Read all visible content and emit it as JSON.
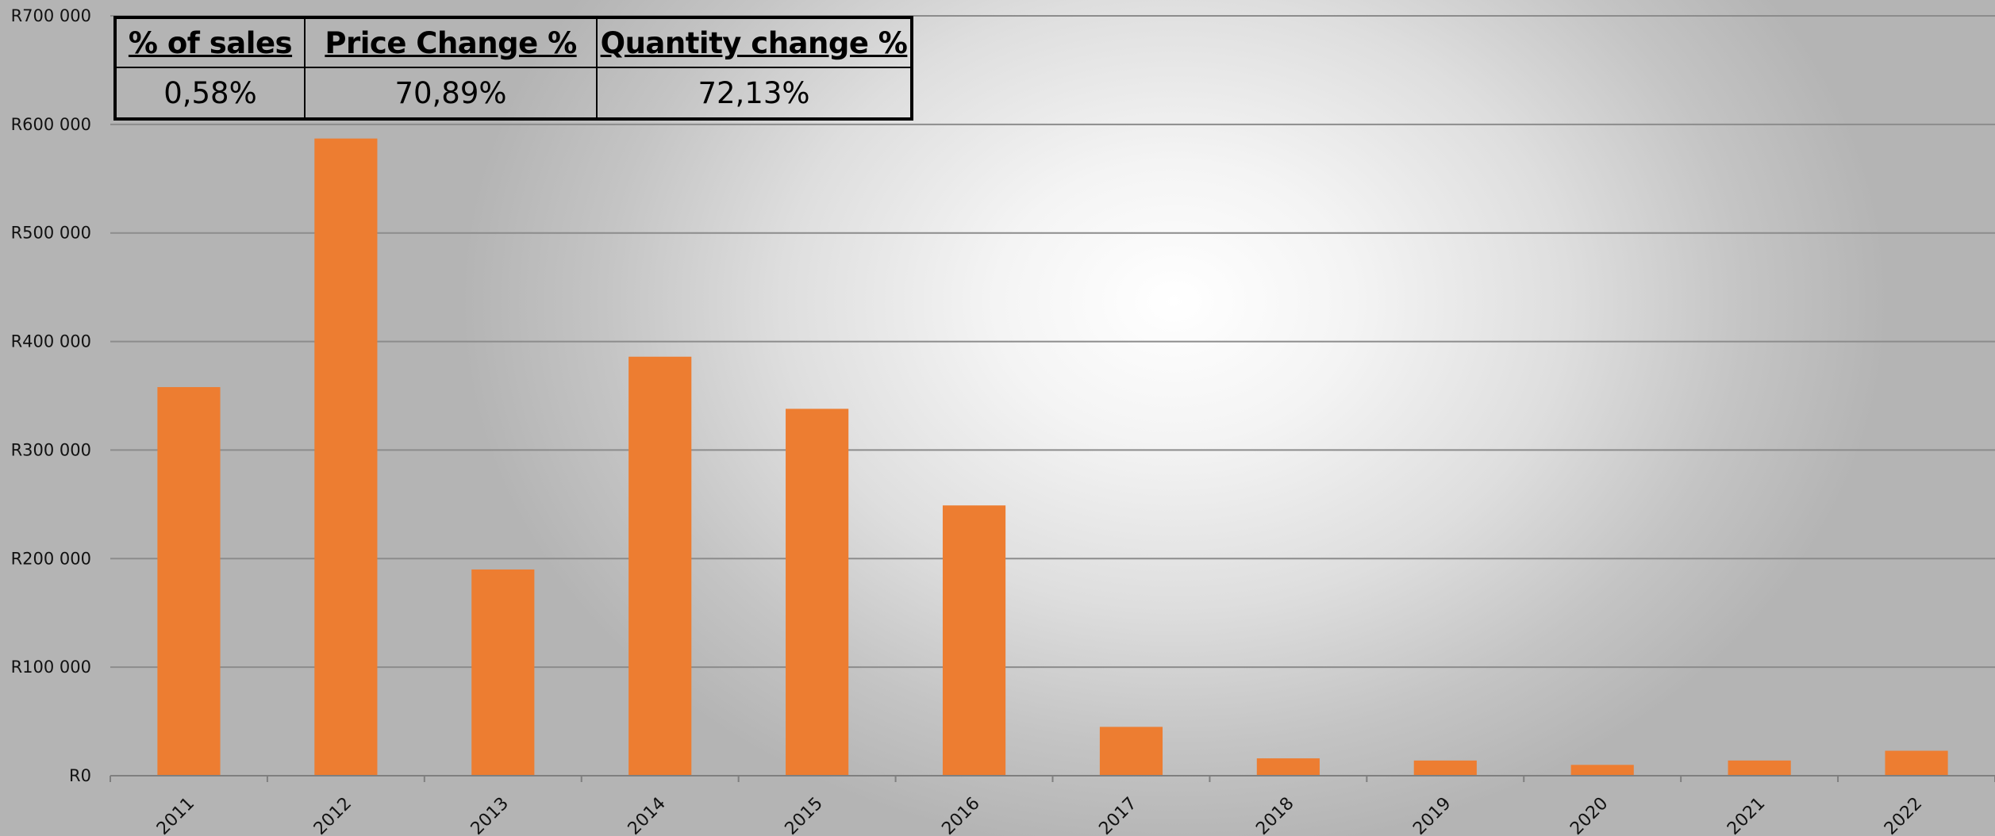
{
  "summary_table": {
    "headers": [
      "% of sales",
      "Price Change %",
      "Quantity change %"
    ],
    "values": [
      "0,58%",
      "70,89%",
      "72,13%"
    ]
  },
  "colors": {
    "bar": "#ED7D31",
    "gridline": "#8c8c8c",
    "axis": "#7f7f7f"
  },
  "chart_data": {
    "type": "bar",
    "title": "",
    "xlabel": "",
    "ylabel": "",
    "categories": [
      "2011",
      "2012",
      "2013",
      "2014",
      "2015",
      "2016",
      "2017",
      "2018",
      "2019",
      "2020",
      "2021",
      "2022"
    ],
    "values": [
      358000,
      587000,
      190000,
      386000,
      338000,
      249000,
      45000,
      16000,
      14000,
      10000,
      14000,
      23000
    ],
    "ylim": [
      0,
      700000
    ],
    "yticks": [
      0,
      100000,
      200000,
      300000,
      400000,
      500000,
      600000,
      700000
    ],
    "ytick_labels": [
      "R0",
      "R100 000",
      "R200 000",
      "R300 000",
      "R400 000",
      "R500 000",
      "R600 000",
      "R700 000"
    ],
    "grid": true,
    "legend": "none",
    "x_tick_rotation": "-45deg"
  }
}
